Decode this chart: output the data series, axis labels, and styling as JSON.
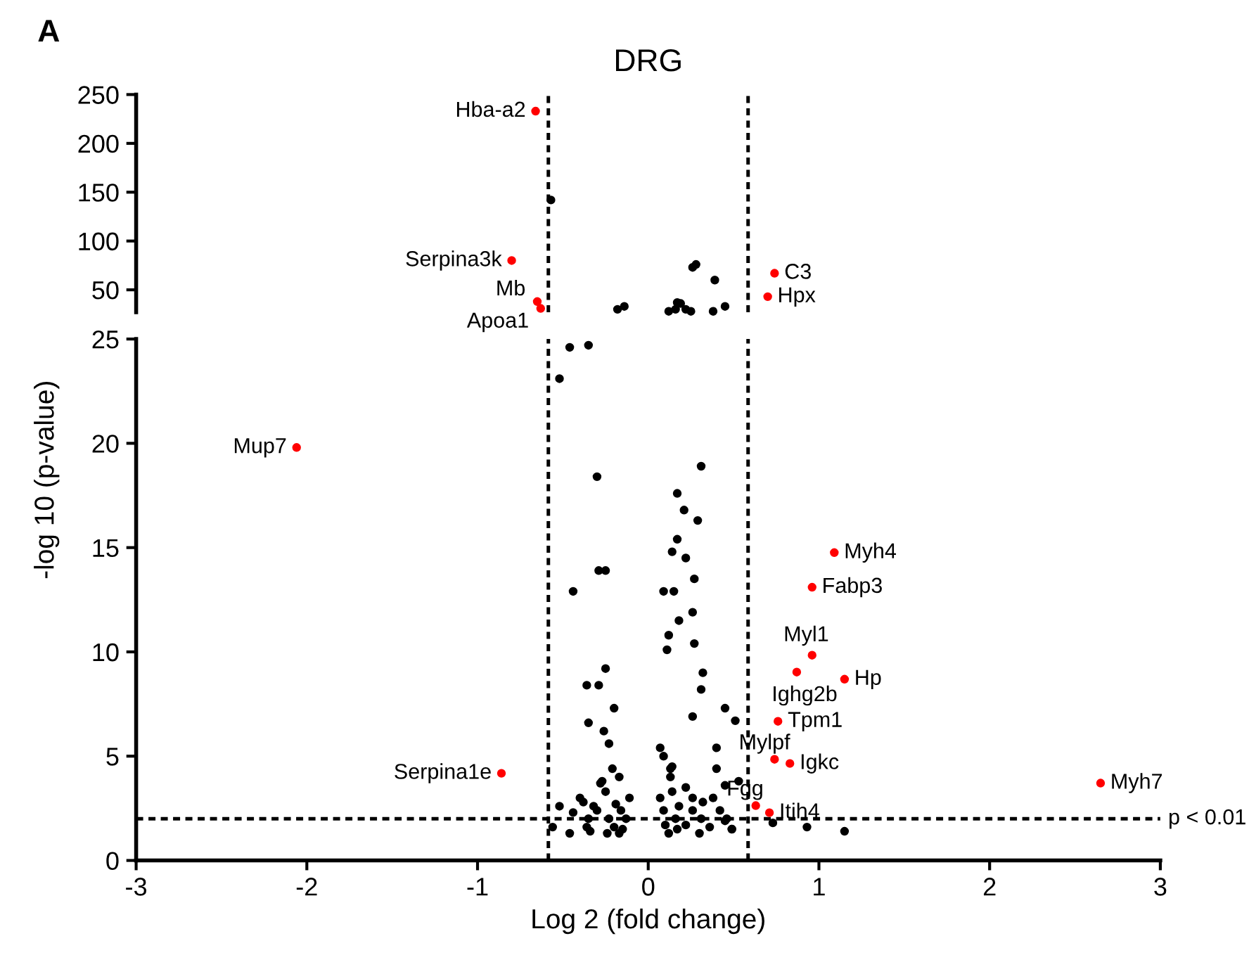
{
  "chart_data": [
    {
      "type": "scatter",
      "title": "DRG",
      "tick_labels": "y",
      "xlim": [
        -3,
        3
      ],
      "ylim": [
        27,
        250
      ],
      "yticks": [
        50,
        100,
        150,
        200,
        250
      ],
      "marker": "circle",
      "grid": false,
      "legend": false,
      "annotations": [
        "A",
        {
          "text": "Hba-a2",
          "x": -0.66,
          "y": 233
        },
        {
          "text": "Serpina3k",
          "x": -0.8,
          "y": 80
        },
        {
          "text": "Mb",
          "x": -0.65,
          "y": 38
        },
        {
          "text": "Apoa1",
          "x": -0.63,
          "y": 31
        },
        {
          "text": "C3",
          "x": 0.74,
          "y": 67
        },
        {
          "text": "Hpx",
          "x": 0.7,
          "y": 43
        }
      ],
      "ref_lines": [
        {
          "axis": "x",
          "value": -0.585,
          "color": "#000000",
          "line_style": "dotted"
        },
        {
          "axis": "x",
          "value": 0.585,
          "color": "#000000",
          "line_style": "dotted"
        }
      ],
      "series": [
        {
          "color": "#000000",
          "x": [
            -0.57,
            -0.18,
            -0.14,
            0.26,
            0.28,
            0.39,
            0.12,
            0.16,
            0.17,
            0.19,
            0.22,
            0.25,
            0.38,
            0.45
          ],
          "values": [
            142,
            30,
            33,
            73,
            76,
            60,
            28,
            30,
            37,
            36,
            30,
            28,
            28,
            33
          ]
        },
        {
          "color": "#ff0000",
          "x": [
            -0.66,
            -0.8,
            -0.65,
            -0.63,
            0.74,
            0.7
          ],
          "values": [
            233,
            80,
            38,
            31,
            67,
            43
          ]
        }
      ]
    },
    {
      "type": "scatter",
      "xlabel": "Log 2 (fold change)",
      "ylabel": "-log 10 (p-value)",
      "xlim": [
        -3,
        3
      ],
      "ylim": [
        0,
        25
      ],
      "xticks": [
        -3,
        -2,
        -1,
        0,
        1,
        2,
        3
      ],
      "yticks": [
        0,
        5,
        10,
        15,
        20,
        25
      ],
      "marker": "circle",
      "grid": false,
      "legend": false,
      "annotations": [
        {
          "text": "Mup7",
          "x": -2.06,
          "y": 19.8
        },
        {
          "text": "Myh4",
          "x": 1.09,
          "y": 14.76
        },
        {
          "text": "Fabp3",
          "x": 0.96,
          "y": 13.1
        },
        {
          "text": "Myl1",
          "x": 0.96,
          "y": 9.84
        },
        {
          "text": "Ighg2b",
          "x": 0.87,
          "y": 9.03
        },
        {
          "text": "Hp",
          "x": 1.15,
          "y": 8.69
        },
        {
          "text": "Tpm1",
          "x": 0.76,
          "y": 6.67
        },
        {
          "text": "Mylpf",
          "x": 0.74,
          "y": 4.85
        },
        {
          "text": "Igkc",
          "x": 0.83,
          "y": 4.65
        },
        {
          "text": "Fgg",
          "x": 0.63,
          "y": 2.63
        },
        {
          "text": "Itih4",
          "x": 0.71,
          "y": 2.29
        },
        {
          "text": "Myh7",
          "x": 2.65,
          "y": 3.71
        },
        {
          "text": "Serpina1e",
          "x": -0.86,
          "y": 4.18
        }
      ],
      "ref_lines": [
        {
          "axis": "x",
          "value": -0.585,
          "color": "#000000",
          "line_style": "dotted"
        },
        {
          "axis": "x",
          "value": 0.585,
          "color": "#000000",
          "line_style": "dotted"
        },
        {
          "axis": "y",
          "value": 2,
          "label": "p < 0.01",
          "color": "#000000",
          "line_style": "dotted"
        }
      ],
      "series": [
        {
          "color": "#000000",
          "x": [
            -0.46,
            -0.35,
            -0.52,
            0.31,
            -0.3,
            0.17,
            0.21,
            0.29,
            0.17,
            0.14,
            0.22,
            -0.29,
            -0.25,
            0.27,
            -0.44,
            0.09,
            0.15,
            0.26,
            0.18,
            0.12,
            0.27,
            0.11,
            -0.25,
            0.32,
            -0.36,
            -0.29,
            0.31,
            0.26,
            0.45,
            0.51,
            -0.2,
            -0.35,
            -0.26,
            -0.23,
            0.07,
            0.4,
            0.14,
            0.45,
            0.53,
            -0.56,
            -0.46,
            -0.4,
            -0.38,
            -0.35,
            -0.34,
            -0.3,
            -0.28,
            -0.25,
            -0.23,
            -0.2,
            -0.19,
            -0.17,
            -0.16,
            -0.13,
            -0.11,
            -0.17,
            -0.21,
            -0.27,
            -0.32,
            -0.44,
            -0.52,
            -0.36,
            -0.24,
            -0.15,
            0.07,
            0.09,
            0.1,
            0.12,
            0.13,
            0.14,
            0.16,
            0.17,
            0.18,
            0.22,
            0.22,
            0.26,
            0.26,
            0.3,
            0.31,
            0.32,
            0.36,
            0.38,
            0.4,
            0.42,
            0.46,
            0.49,
            0.13,
            0.09,
            0.73,
            0.93,
            1.15,
            0.45,
            0.49
          ],
          "values": [
            24.6,
            24.7,
            23.1,
            18.9,
            18.4,
            17.6,
            16.8,
            16.3,
            15.4,
            14.8,
            14.5,
            13.9,
            13.9,
            13.5,
            12.9,
            12.9,
            12.9,
            11.9,
            11.5,
            10.8,
            10.4,
            10.1,
            9.2,
            9.0,
            8.4,
            8.4,
            8.2,
            6.9,
            7.3,
            6.7,
            7.3,
            6.6,
            6.2,
            5.6,
            5.4,
            5.4,
            4.5,
            3.6,
            3.8,
            1.6,
            1.3,
            3.0,
            2.8,
            2.0,
            1.4,
            2.4,
            3.7,
            3.3,
            2.0,
            1.6,
            2.7,
            1.3,
            2.4,
            2.0,
            3.0,
            4.0,
            4.4,
            3.8,
            2.6,
            2.3,
            2.6,
            1.6,
            1.3,
            1.5,
            3.0,
            2.4,
            1.7,
            1.3,
            4.0,
            3.3,
            2.0,
            1.5,
            2.6,
            3.5,
            1.7,
            2.4,
            3.0,
            1.3,
            2.0,
            2.8,
            1.6,
            3.0,
            4.4,
            2.4,
            2.0,
            1.5,
            4.4,
            5.0,
            1.8,
            1.6,
            1.4,
            1.9,
            1.5
          ]
        },
        {
          "color": "#ff0000",
          "x": [
            -2.06,
            1.09,
            0.96,
            0.96,
            0.87,
            1.15,
            0.76,
            0.74,
            0.83,
            0.63,
            0.71,
            2.65,
            -0.86
          ],
          "values": [
            19.8,
            14.76,
            13.1,
            9.84,
            9.03,
            8.69,
            6.67,
            4.85,
            4.65,
            2.63,
            2.29,
            3.71,
            4.18
          ]
        }
      ]
    }
  ]
}
